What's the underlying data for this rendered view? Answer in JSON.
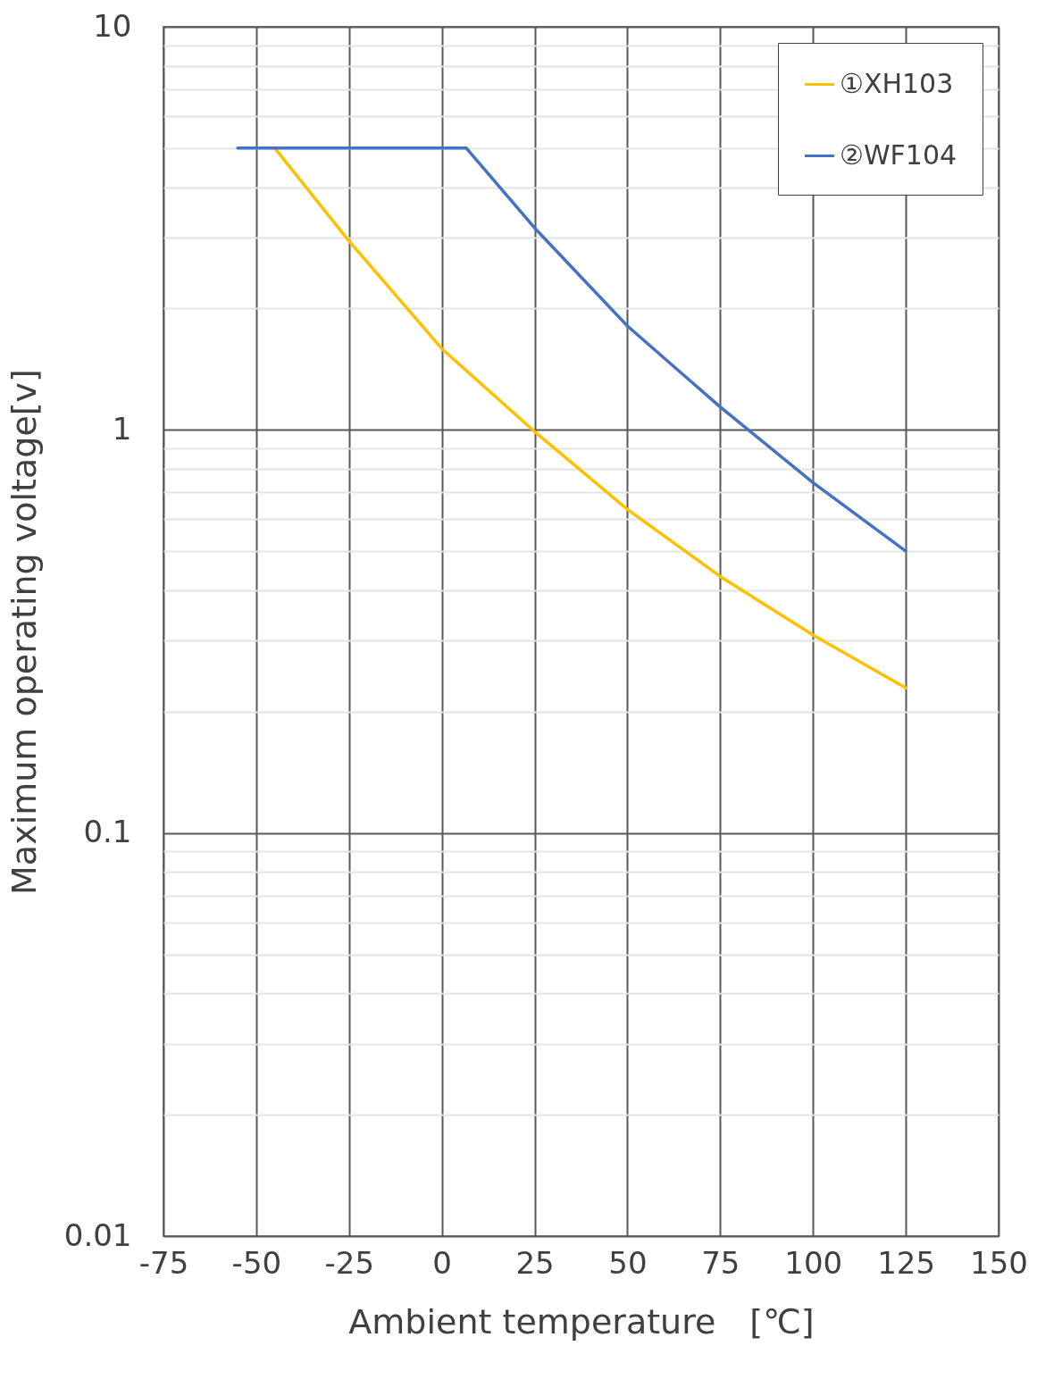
{
  "chart_data": {
    "type": "line",
    "xlabel": "Ambient temperature　[℃]",
    "ylabel": "Maximum operating voltage[v]",
    "series": [
      {
        "name": "①XH103",
        "color": "#ffc000",
        "x": [
          -45,
          -25,
          0,
          25,
          50,
          75,
          100,
          125
        ],
        "values": [
          5,
          2.94,
          1.59,
          0.99,
          0.635,
          0.433,
          0.31,
          0.229
        ]
      },
      {
        "name": "②WF104",
        "color": "#4472c4",
        "x": [
          -55,
          6.6,
          25,
          50,
          75,
          100,
          125
        ],
        "values": [
          5,
          5,
          3.17,
          1.81,
          1.14,
          0.74,
          0.5
        ]
      }
    ],
    "log": true,
    "xlim": [
      -75,
      150
    ],
    "xticks": [
      -75,
      -50,
      -25,
      0,
      25,
      50,
      75,
      100,
      125,
      150
    ],
    "ylim": [
      0.01,
      10
    ],
    "yticks": [
      {
        "value": 0.01,
        "label": "0.01"
      },
      {
        "value": 0.02,
        "label": null
      },
      {
        "value": 0.03,
        "label": null
      },
      {
        "value": 0.04,
        "label": null
      },
      {
        "value": 0.05,
        "label": null
      },
      {
        "value": 0.06,
        "label": null
      },
      {
        "value": 0.07,
        "label": null
      },
      {
        "value": 0.08,
        "label": null
      },
      {
        "value": 0.09,
        "label": null
      },
      {
        "value": 0.1,
        "label": "0.1"
      },
      {
        "value": 0.2,
        "label": null
      },
      {
        "value": 0.3,
        "label": null
      },
      {
        "value": 0.4,
        "label": null
      },
      {
        "value": 0.5,
        "label": null
      },
      {
        "value": 0.6,
        "label": null
      },
      {
        "value": 0.7,
        "label": null
      },
      {
        "value": 0.8,
        "label": null
      },
      {
        "value": 0.9,
        "label": null
      },
      {
        "value": 1,
        "label": "1"
      },
      {
        "value": 2,
        "label": null
      },
      {
        "value": 3,
        "label": null
      },
      {
        "value": 4,
        "label": null
      },
      {
        "value": 5,
        "label": null
      },
      {
        "value": 6,
        "label": null
      },
      {
        "value": 7,
        "label": null
      },
      {
        "value": 8,
        "label": null
      },
      {
        "value": 9,
        "label": null
      },
      {
        "value": 10,
        "label": "10"
      }
    ],
    "grid": true,
    "legend": "top right",
    "marker": "none",
    "line_style": "solid"
  }
}
